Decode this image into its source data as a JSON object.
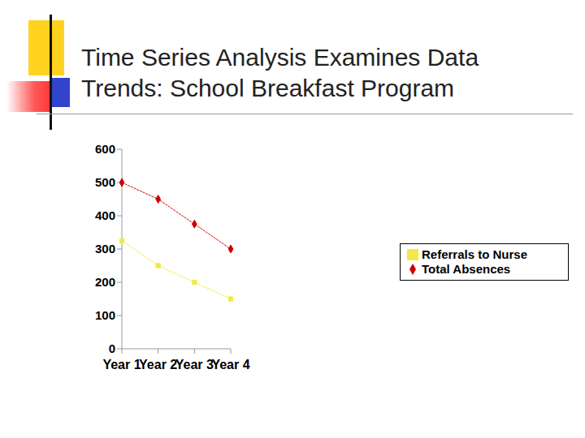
{
  "title": "Time Series Analysis Examines Data Trends: School Breakfast Program",
  "chart_data": {
    "type": "line",
    "categories": [
      "Year 1",
      "Year 2",
      "Year 3",
      "Year 4"
    ],
    "series": [
      {
        "name": "Total Absences",
        "color": "#cc0000",
        "marker": "diamond",
        "values": [
          500,
          450,
          375,
          300
        ]
      },
      {
        "name": "Referrals to Nurse",
        "color": "#f2e84a",
        "marker": "square",
        "values": [
          325,
          250,
          200,
          150
        ]
      }
    ],
    "ylim": [
      0,
      600
    ],
    "yticks": [
      0,
      100,
      200,
      300,
      400,
      500,
      600
    ],
    "grid": false,
    "legend": "right"
  }
}
